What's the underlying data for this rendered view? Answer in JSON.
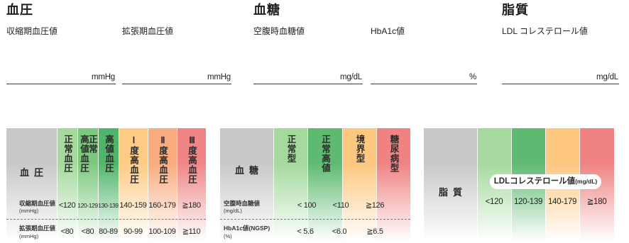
{
  "sections": {
    "bp": {
      "title": "血圧",
      "fields": [
        {
          "label": "収縮期血圧値",
          "unit": "mmHg",
          "value": ""
        },
        {
          "label": "拡張期血圧値",
          "unit": "mmHg",
          "value": ""
        }
      ]
    },
    "glucose": {
      "title": "血糖",
      "fields": [
        {
          "label": "空腹時血糖値",
          "unit": "mg/dL",
          "value": ""
        },
        {
          "label": "HbA1c値",
          "unit": "%",
          "value": ""
        }
      ]
    },
    "lipid": {
      "title": "脂質",
      "fields": [
        {
          "label": "LDL コレステロール値",
          "unit": "mg/dL",
          "value": ""
        }
      ]
    }
  },
  "bp_table": {
    "label": "血圧",
    "header_color": "#c8c8c8",
    "categories": [
      {
        "label_lines": [
          "正常血圧"
        ],
        "color": "#a5d99e"
      },
      {
        "label_lines": [
          "正常",
          "高値血圧"
        ],
        "color": "#7cc87d"
      },
      {
        "label_lines": [
          "高値血圧"
        ],
        "color": "#50b56a"
      },
      {
        "label_lines": [
          "Ⅰ度高血圧"
        ],
        "color": "#fdcb86"
      },
      {
        "label_lines": [
          "Ⅱ度高血圧"
        ],
        "color": "#f9ac80"
      },
      {
        "label_lines": [
          "Ⅲ度高血圧"
        ],
        "color": "#f08586"
      }
    ],
    "rows": [
      {
        "label": "収縮期血圧値",
        "unit": "(mmHg)",
        "values": [
          "<120",
          "120-129",
          "130-139",
          "140-159",
          "160-179",
          "≧180"
        ]
      },
      {
        "label": "拡張期血圧値",
        "unit": "(mmHg)",
        "values": [
          "<80",
          "<80",
          "80-89",
          "90-99",
          "100-109",
          "≧110"
        ]
      }
    ]
  },
  "glucose_table": {
    "label": "血糖",
    "header_color": "#c8c8c8",
    "categories": [
      {
        "label": "正常型",
        "color": "#a5d99e"
      },
      {
        "label": "正常高値",
        "color": "#5dba70"
      },
      {
        "label": "境界型",
        "color": "#fdc77f"
      },
      {
        "label": "糖尿病型",
        "color": "#f08282"
      }
    ],
    "rows": [
      {
        "label": "空腹時血糖値",
        "unit": "(mg/dL)",
        "thresholds": [
          "< 100",
          "<110",
          "≧126"
        ]
      },
      {
        "label": "HbA1c値(NGSP)",
        "unit": "(%)",
        "thresholds": [
          "< 5.6",
          "<6.0",
          "≧6.5"
        ]
      }
    ]
  },
  "lipid_table": {
    "label": "脂質",
    "header_color": "#c8c8c8",
    "pill": {
      "title": "LDLコレステロール値",
      "unit": "(mg/dL)"
    },
    "categories": [
      {
        "color": "#a5d99e",
        "value": "<120"
      },
      {
        "color": "#5dba70",
        "value": "120-139"
      },
      {
        "color": "#fdc77f",
        "value": "140-179"
      },
      {
        "color": "#f08282",
        "value": "≧180"
      }
    ]
  }
}
